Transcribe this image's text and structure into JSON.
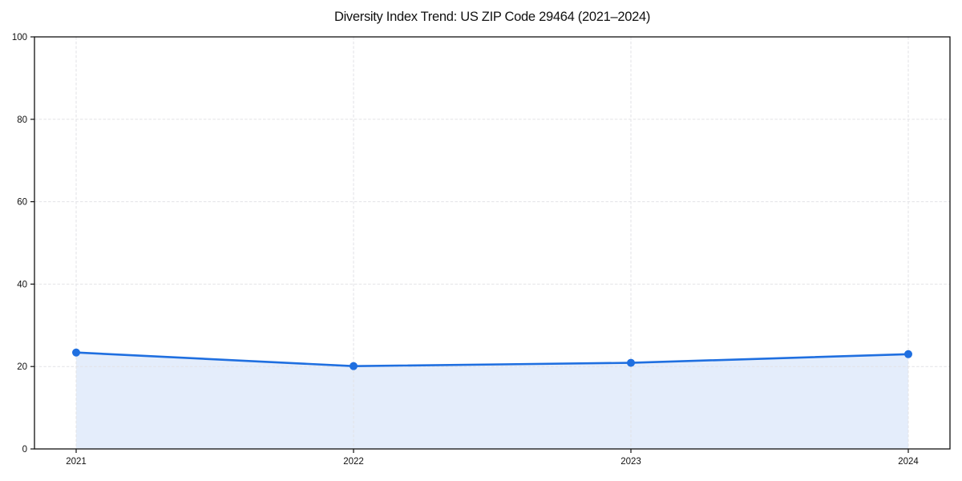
{
  "chart_data": {
    "type": "line",
    "title": "Diversity Index Trend: US ZIP Code 29464 (2021–2024)",
    "series_name": "Diversity Index",
    "categories": [
      "2021",
      "2022",
      "2023",
      "2024"
    ],
    "values": [
      23.4,
      20.1,
      20.9,
      23.0
    ],
    "xlabel": "",
    "ylabel": "",
    "ylim": [
      0,
      100
    ],
    "yticks": [
      0,
      20,
      40,
      60,
      80,
      100
    ],
    "grid": true,
    "grid_style": "dashed",
    "legend_position": "none",
    "area_fill": true,
    "area_fill_baseline": 0,
    "marker": "circle",
    "colors": {
      "line": "#1f6fe0",
      "marker": "#1f6fe0",
      "area": "rgba(31, 111, 224, 0.12)",
      "grid": "#e2e2e6",
      "spine": "#111111",
      "tick_label": "#111111",
      "title": "#111111",
      "background": "#ffffff"
    }
  }
}
